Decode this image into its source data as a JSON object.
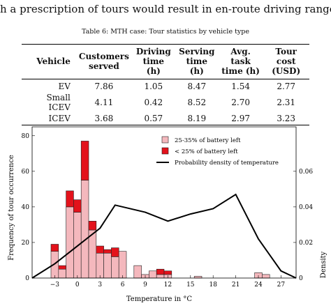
{
  "top_text": "h a prescription of tours would result in en-route driving range chaos.",
  "table": {
    "caption": "Table 6: MTH case: Tour statistics by vehicle type",
    "headers": [
      {
        "line1": "Vehicle",
        "line2": ""
      },
      {
        "line1": "Customers",
        "line2": "served"
      },
      {
        "line1": "Driving",
        "line2": "time (h)"
      },
      {
        "line1": "Serving",
        "line2": "time (h)"
      },
      {
        "line1": "Avg. task",
        "line2": "time (h)"
      },
      {
        "line1": "Tour cost",
        "line2": "(USD)"
      }
    ],
    "rows": [
      [
        "EV",
        "7.86",
        "1.05",
        "8.47",
        "1.54",
        "2.77"
      ],
      [
        "Small ICEV",
        "4.11",
        "0.42",
        "8.52",
        "2.70",
        "2.31"
      ],
      [
        "ICEV",
        "3.68",
        "0.57",
        "8.19",
        "2.97",
        "3.23"
      ]
    ]
  },
  "chart_data": {
    "type": "bar",
    "xlabel": "Temperature in °C",
    "ylabel": "Frequency of tour occurrence",
    "y2label": "Density",
    "xlim": [
      -6,
      29
    ],
    "ylim": [
      0,
      85
    ],
    "y2lim": [
      0,
      0.085
    ],
    "xticks": [
      "−3",
      "0",
      "3",
      "6",
      "9",
      "12",
      "15",
      "18",
      "21",
      "24",
      "27"
    ],
    "xtick_values": [
      -3,
      0,
      3,
      6,
      9,
      12,
      15,
      18,
      21,
      24,
      27
    ],
    "yticks": [
      "0",
      "20",
      "40",
      "60",
      "80"
    ],
    "ytick_values": [
      0,
      20,
      40,
      60,
      80
    ],
    "y2ticks": [
      "0",
      "0.02",
      "0.04",
      "0.06"
    ],
    "y2tick_values": [
      0,
      0.02,
      0.04,
      0.06
    ],
    "grid": false,
    "legend_placement": "top-right",
    "colors": {
      "light": "#f4b8bd",
      "dark": "#e3121b",
      "line": "#000000"
    },
    "series": [
      {
        "name": "25-35% of battery left",
        "color": "#f4b8bd"
      },
      {
        "name": "< 25% of battery left",
        "color": "#e3121b"
      },
      {
        "name": "Probability density of temperature",
        "color": "#000000"
      }
    ],
    "bars": [
      {
        "x": -3,
        "light": 15,
        "dark": 4
      },
      {
        "x": -2,
        "light": 5,
        "dark": 2
      },
      {
        "x": -1,
        "light": 40,
        "dark": 9
      },
      {
        "x": 0,
        "light": 37,
        "dark": 7
      },
      {
        "x": 1,
        "light": 55,
        "dark": 22
      },
      {
        "x": 2,
        "light": 27,
        "dark": 5
      },
      {
        "x": 3,
        "light": 14,
        "dark": 4
      },
      {
        "x": 4,
        "light": 14,
        "dark": 2
      },
      {
        "x": 5,
        "light": 12,
        "dark": 5
      },
      {
        "x": 6,
        "light": 15,
        "dark": 0
      },
      {
        "x": 8,
        "light": 7,
        "dark": 0
      },
      {
        "x": 9,
        "light": 2,
        "dark": 0
      },
      {
        "x": 10,
        "light": 4,
        "dark": 0
      },
      {
        "x": 11,
        "light": 2,
        "dark": 3
      },
      {
        "x": 12,
        "light": 2,
        "dark": 2
      },
      {
        "x": 16,
        "light": 1,
        "dark": 0
      },
      {
        "x": 24,
        "light": 3,
        "dark": 0
      },
      {
        "x": 25,
        "light": 2,
        "dark": 0
      }
    ],
    "density_curve": {
      "x": [
        -6,
        -3,
        0,
        3,
        5,
        9,
        12,
        15,
        18,
        21,
        24,
        27,
        29
      ],
      "y": [
        0.0,
        0.008,
        0.018,
        0.028,
        0.041,
        0.037,
        0.032,
        0.036,
        0.039,
        0.047,
        0.022,
        0.004,
        0.0
      ]
    }
  }
}
